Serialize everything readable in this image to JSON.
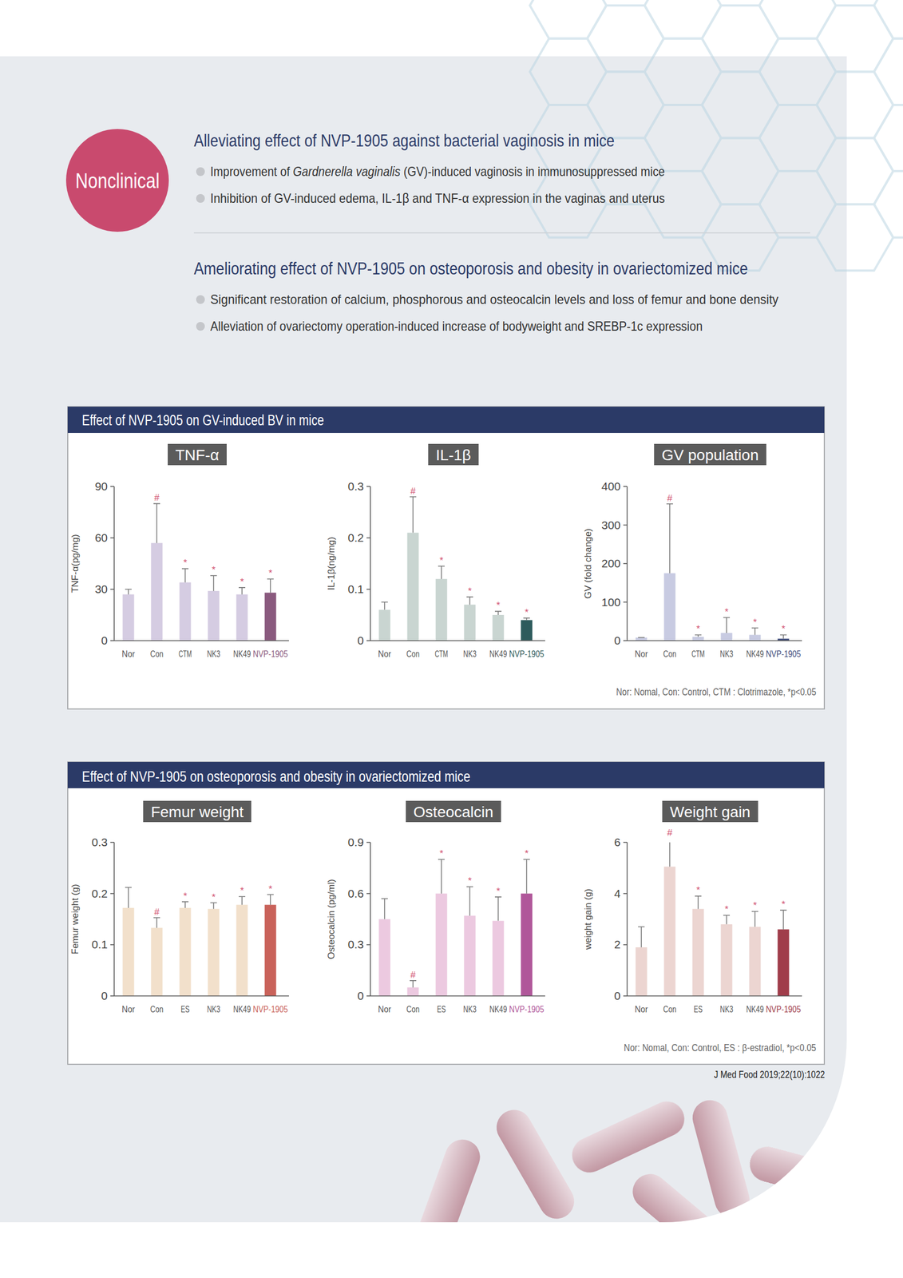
{
  "badge": "Nonclinical",
  "sections": [
    {
      "heading": "Alleviating effect of NVP-1905 against bacterial vaginosis in mice",
      "bullets": [
        {
          "text": "Improvement of Gardnerella vaginalis (GV)-induced vaginosis in immunosuppressed mice",
          "italic": "Gardnerella vaginalis"
        },
        {
          "text": "Inhibition of GV-induced edema, IL-1β and TNF-α expression in the vaginas and uterus"
        }
      ]
    },
    {
      "heading": "Ameliorating effect of NVP-1905 on osteoporosis and obesity in ovariectomized mice",
      "bullets": [
        {
          "text": "Significant restoration of calcium, phosphorous and osteocalcin levels and loss of femur and bone density"
        },
        {
          "text": "Alleviation of ovariectomy operation-induced increase of bodyweight and SREBP-1c expression"
        }
      ]
    }
  ],
  "panels": [
    {
      "title": "Effect of NVP-1905 on GV-induced BV in mice",
      "note": "Nor: Nomal, Con: Control, CTM : Clotrimazole, *p<0.05"
    },
    {
      "title": "Effect of NVP-1905 on osteoporosis and obesity in ovariectomized mice",
      "note": "Nor: Nomal, Con: Control, ES : β-estradiol, *p<0.05"
    }
  ],
  "citation": "J Med Food 2019;22(10):1022",
  "chart_data": [
    {
      "type": "bar",
      "title": "TNF-α",
      "y_label": "TNF-α(pg/mg)",
      "categories": [
        "Nor",
        "Con",
        "CTM",
        "NK3",
        "NK49",
        "NVP-1905"
      ],
      "values": [
        27,
        57,
        34,
        29,
        27,
        28
      ],
      "errors": [
        3,
        23,
        8,
        9,
        4,
        8
      ],
      "significance": [
        null,
        "#",
        "*",
        "*",
        "*",
        "*"
      ],
      "colors": [
        "#d5cce2",
        "#d5cce2",
        "#d5cce2",
        "#d5cce2",
        "#d5cce2",
        "#8a5a7e"
      ],
      "ylim": [
        0,
        90
      ],
      "yticks": [
        0,
        30,
        60,
        90
      ]
    },
    {
      "type": "bar",
      "title": "IL-1β",
      "y_label": "IL-1β(ng/mg)",
      "categories": [
        "Nor",
        "Con",
        "CTM",
        "NK3",
        "NK49",
        "NVP-1905"
      ],
      "values": [
        0.06,
        0.21,
        0.12,
        0.07,
        0.05,
        0.04
      ],
      "errors": [
        0.015,
        0.07,
        0.025,
        0.015,
        0.007,
        0.004
      ],
      "significance": [
        null,
        "#",
        "*",
        "*",
        "*",
        "*"
      ],
      "colors": [
        "#c9d5d1",
        "#c9d5d1",
        "#c9d5d1",
        "#c9d5d1",
        "#c9d5d1",
        "#2d5b5c"
      ],
      "ylim": [
        0,
        0.3
      ],
      "yticks": [
        0,
        0.1,
        0.2,
        0.3
      ]
    },
    {
      "type": "bar",
      "title": "GV population",
      "y_label": "GV (fold change)",
      "categories": [
        "Nor",
        "Con",
        "CTM",
        "NK3",
        "NK49",
        "NVP-1905"
      ],
      "values": [
        8,
        175,
        10,
        20,
        15,
        5
      ],
      "errors": [
        0,
        180,
        5,
        40,
        18,
        10
      ],
      "significance": [
        null,
        "#",
        "*",
        "*",
        "*",
        "*"
      ],
      "colors": [
        "#c8cbe2",
        "#c8cbe2",
        "#c8cbe2",
        "#c8cbe2",
        "#c8cbe2",
        "#3d4a7a"
      ],
      "ylim": [
        0,
        400
      ],
      "yticks": [
        0,
        100,
        200,
        300,
        400
      ]
    },
    {
      "type": "bar",
      "title": "Femur weight",
      "y_label": "Femur weight (g)",
      "categories": [
        "Nor",
        "Con",
        "ES",
        "NK3",
        "NK49",
        "NVP-1905"
      ],
      "values": [
        0.172,
        0.133,
        0.172,
        0.17,
        0.178,
        0.178
      ],
      "errors": [
        0.04,
        0.02,
        0.012,
        0.012,
        0.016,
        0.02
      ],
      "significance": [
        null,
        "#",
        "*",
        "*",
        "*",
        "*"
      ],
      "colors": [
        "#f2e0cb",
        "#f2e0cb",
        "#f2e0cb",
        "#f2e0cb",
        "#f2e0cb",
        "#c9625a"
      ],
      "ylim": [
        0,
        0.3
      ],
      "yticks": [
        0,
        0.1,
        0.2,
        0.3
      ]
    },
    {
      "type": "bar",
      "title": "Osteocalcin",
      "y_label": "Osteocalcin (pg/ml)",
      "categories": [
        "Nor",
        "Con",
        "ES",
        "NK3",
        "NK49",
        "NVP-1905"
      ],
      "values": [
        0.45,
        0.05,
        0.6,
        0.47,
        0.44,
        0.6
      ],
      "errors": [
        0.12,
        0.04,
        0.2,
        0.17,
        0.14,
        0.2
      ],
      "significance": [
        null,
        "#",
        "*",
        "*",
        "*",
        "*"
      ],
      "colors": [
        "#ecc9e0",
        "#ecc9e0",
        "#ecc9e0",
        "#ecc9e0",
        "#ecc9e0",
        "#b0579a"
      ],
      "ylim": [
        0,
        0.9
      ],
      "yticks": [
        0,
        0.3,
        0.6,
        0.9
      ]
    },
    {
      "type": "bar",
      "title": "Weight gain",
      "y_label": "weight gain (g)",
      "categories": [
        "Nor",
        "Con",
        "ES",
        "NK3",
        "NK49",
        "NVP-1905"
      ],
      "values": [
        1.9,
        5.05,
        3.4,
        2.8,
        2.7,
        2.6
      ],
      "errors": [
        0.8,
        1.1,
        0.5,
        0.35,
        0.6,
        0.75
      ],
      "significance": [
        null,
        "#",
        "*",
        "*",
        "*",
        "*"
      ],
      "colors": [
        "#ecd5d1",
        "#ecd5d1",
        "#ecd5d1",
        "#ecd5d1",
        "#ecd5d1",
        "#a03d4a"
      ],
      "ylim": [
        0,
        6
      ],
      "yticks": [
        0,
        2,
        4,
        6
      ]
    }
  ]
}
